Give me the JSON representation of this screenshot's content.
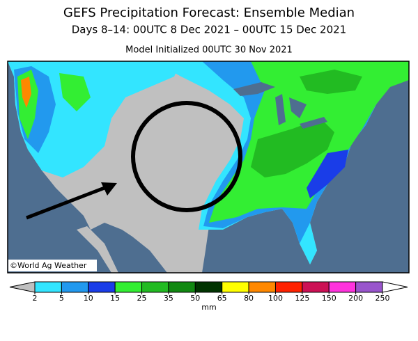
{
  "header": {
    "title": "GEFS Precipitation Forecast: Ensemble Median",
    "subtitle": "Days 8–14: 00UTC 8 Dec 2021 – 00UTC 15 Dec 2021",
    "initialized": "Model Initialized 00UTC 30 Nov 2021"
  },
  "map": {
    "credit": "©World Ag Weather"
  },
  "colorbar": {
    "ticks": [
      2,
      5,
      10,
      15,
      25,
      35,
      50,
      65,
      80,
      100,
      125,
      150,
      200,
      250
    ],
    "colors": [
      "#33e5ff",
      "#2299ee",
      "#1a3de8",
      "#33ee33",
      "#22bb22",
      "#118811",
      "#003300",
      "#ffff00",
      "#ff8800",
      "#ff2200",
      "#cc1155",
      "#ff33dd",
      "#9955cc"
    ],
    "under_color": "#c0c0c0",
    "over_color": "#ffffff",
    "unit": "mm"
  }
}
